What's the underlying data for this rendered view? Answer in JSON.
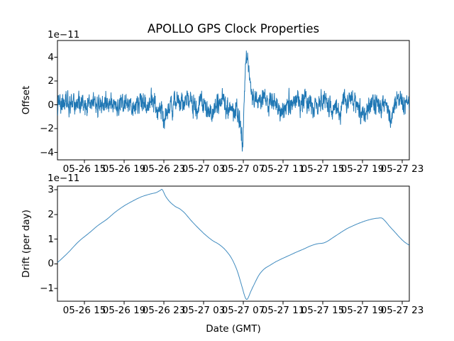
{
  "figure": {
    "title": "APOLLO GPS Clock Properties",
    "background_color": "#ffffff",
    "line_color": "#1f77b4",
    "text_color": "#000000"
  },
  "chart_data": [
    {
      "type": "line",
      "title": "APOLLO GPS Clock Properties",
      "ylabel": "Offset",
      "y_offset_text": "1e−11",
      "y_units": "1e-11",
      "ylim": [
        -4.63,
        5.4
      ],
      "y_ticks": [
        4,
        2,
        0,
        -2,
        -4
      ],
      "y_tick_labels": [
        "4",
        "2",
        "0",
        "−2",
        "−4"
      ],
      "x_tick_labels": [
        "05-26 15",
        "05-26 19",
        "05-26 23",
        "05-27 03",
        "05-27 07",
        "05-27 11",
        "05-27 15",
        "05-27 19",
        "05-27 23"
      ],
      "x_tick_positions": [
        0.0766,
        0.1895,
        0.3024,
        0.4153,
        0.5282,
        0.6411,
        0.754,
        0.8669,
        0.9798
      ],
      "grid": false,
      "legend": "none",
      "series": [
        {
          "name": "offset",
          "style": "noisy",
          "n_samples": 1800,
          "noise_sigma": 0.42,
          "noise_ar": 0.45,
          "noise_seed": 42,
          "baseline_points": [
            [
              0.0,
              0.05
            ],
            [
              0.02,
              0.15
            ],
            [
              0.04,
              -0.1
            ],
            [
              0.06,
              0.2
            ],
            [
              0.08,
              -0.15
            ],
            [
              0.1,
              0.15
            ],
            [
              0.12,
              -0.2
            ],
            [
              0.145,
              0.3
            ],
            [
              0.17,
              -0.15
            ],
            [
              0.19,
              0.1
            ],
            [
              0.21,
              -0.25
            ],
            [
              0.23,
              0.2
            ],
            [
              0.25,
              -0.15
            ],
            [
              0.27,
              0.3
            ],
            [
              0.285,
              -0.2
            ],
            [
              0.295,
              -0.4
            ],
            [
              0.302,
              -1.9
            ],
            [
              0.312,
              -0.4
            ],
            [
              0.33,
              0.3
            ],
            [
              0.35,
              0.1
            ],
            [
              0.37,
              0.35
            ],
            [
              0.39,
              -0.2
            ],
            [
              0.41,
              0.15
            ],
            [
              0.43,
              -0.7
            ],
            [
              0.445,
              -0.6
            ],
            [
              0.46,
              0.35
            ],
            [
              0.475,
              0.2
            ],
            [
              0.49,
              -0.3
            ],
            [
              0.505,
              -0.4
            ],
            [
              0.518,
              -0.9
            ],
            [
              0.5262,
              -3.8
            ],
            [
              0.53,
              0.3
            ],
            [
              0.5363,
              4.55
            ],
            [
              0.542,
              3.5
            ],
            [
              0.548,
              2.0
            ],
            [
              0.556,
              0.5
            ],
            [
              0.565,
              0.9
            ],
            [
              0.578,
              0.1
            ],
            [
              0.587,
              0.7
            ],
            [
              0.6,
              -0.1
            ],
            [
              0.615,
              0.2
            ],
            [
              0.63,
              -0.5
            ],
            [
              0.645,
              -0.7
            ],
            [
              0.66,
              0.1
            ],
            [
              0.68,
              0.3
            ],
            [
              0.7,
              0.45
            ],
            [
              0.715,
              0.1
            ],
            [
              0.73,
              -0.3
            ],
            [
              0.745,
              0.2
            ],
            [
              0.76,
              0.35
            ],
            [
              0.78,
              -0.3
            ],
            [
              0.8,
              -0.7
            ],
            [
              0.815,
              0.2
            ],
            [
              0.83,
              0.3
            ],
            [
              0.85,
              0.1
            ],
            [
              0.865,
              -1.0
            ],
            [
              0.88,
              -0.3
            ],
            [
              0.9,
              0.3
            ],
            [
              0.915,
              -0.2
            ],
            [
              0.93,
              0.2
            ],
            [
              0.948,
              -1.1
            ],
            [
              0.96,
              0.2
            ],
            [
              0.975,
              0.3
            ],
            [
              0.99,
              0.1
            ],
            [
              1.0,
              0.15
            ]
          ]
        }
      ]
    },
    {
      "type": "line",
      "ylabel": "Drift (per day)",
      "xlabel": "Date (GMT)",
      "y_offset_text": "1e−11",
      "y_units": "1e-11",
      "ylim": [
        -1.51,
        3.14
      ],
      "y_ticks": [
        3,
        2,
        1,
        0,
        -1
      ],
      "y_tick_labels": [
        "3",
        "2",
        "1",
        "0",
        "−1"
      ],
      "x_tick_labels": [
        "05-26 15",
        "05-26 19",
        "05-26 23",
        "05-27 03",
        "05-27 07",
        "05-27 11",
        "05-27 15",
        "05-27 19",
        "05-27 23"
      ],
      "x_tick_positions": [
        0.0766,
        0.1895,
        0.3024,
        0.4153,
        0.5282,
        0.6411,
        0.754,
        0.8669,
        0.9798
      ],
      "grid": false,
      "legend": "none",
      "series": [
        {
          "name": "drift",
          "style": "smooth",
          "points": [
            [
              0.0,
              0.05
            ],
            [
              0.03,
              0.45
            ],
            [
              0.06,
              0.9
            ],
            [
              0.09,
              1.25
            ],
            [
              0.115,
              1.55
            ],
            [
              0.14,
              1.8
            ],
            [
              0.165,
              2.1
            ],
            [
              0.19,
              2.35
            ],
            [
              0.215,
              2.55
            ],
            [
              0.24,
              2.72
            ],
            [
              0.265,
              2.83
            ],
            [
              0.28,
              2.88
            ],
            [
              0.292,
              2.97
            ],
            [
              0.298,
              3.0
            ],
            [
              0.308,
              2.72
            ],
            [
              0.32,
              2.5
            ],
            [
              0.335,
              2.32
            ],
            [
              0.348,
              2.22
            ],
            [
              0.362,
              2.05
            ],
            [
              0.38,
              1.75
            ],
            [
              0.4,
              1.45
            ],
            [
              0.42,
              1.18
            ],
            [
              0.44,
              0.95
            ],
            [
              0.46,
              0.78
            ],
            [
              0.478,
              0.55
            ],
            [
              0.495,
              0.22
            ],
            [
              0.51,
              -0.25
            ],
            [
              0.522,
              -0.8
            ],
            [
              0.531,
              -1.25
            ],
            [
              0.536,
              -1.42
            ],
            [
              0.541,
              -1.4
            ],
            [
              0.55,
              -1.1
            ],
            [
              0.56,
              -0.8
            ],
            [
              0.57,
              -0.52
            ],
            [
              0.578,
              -0.35
            ],
            [
              0.59,
              -0.18
            ],
            [
              0.605,
              -0.05
            ],
            [
              0.62,
              0.08
            ],
            [
              0.64,
              0.22
            ],
            [
              0.66,
              0.35
            ],
            [
              0.68,
              0.48
            ],
            [
              0.7,
              0.6
            ],
            [
              0.715,
              0.7
            ],
            [
              0.73,
              0.78
            ],
            [
              0.742,
              0.82
            ],
            [
              0.755,
              0.84
            ],
            [
              0.768,
              0.92
            ],
            [
              0.785,
              1.08
            ],
            [
              0.8,
              1.22
            ],
            [
              0.82,
              1.4
            ],
            [
              0.84,
              1.54
            ],
            [
              0.86,
              1.66
            ],
            [
              0.88,
              1.76
            ],
            [
              0.9,
              1.83
            ],
            [
              0.912,
              1.85
            ],
            [
              0.922,
              1.85
            ],
            [
              0.932,
              1.72
            ],
            [
              0.945,
              1.5
            ],
            [
              0.958,
              1.3
            ],
            [
              0.972,
              1.08
            ],
            [
              0.985,
              0.9
            ],
            [
              1.0,
              0.75
            ]
          ]
        }
      ]
    }
  ]
}
